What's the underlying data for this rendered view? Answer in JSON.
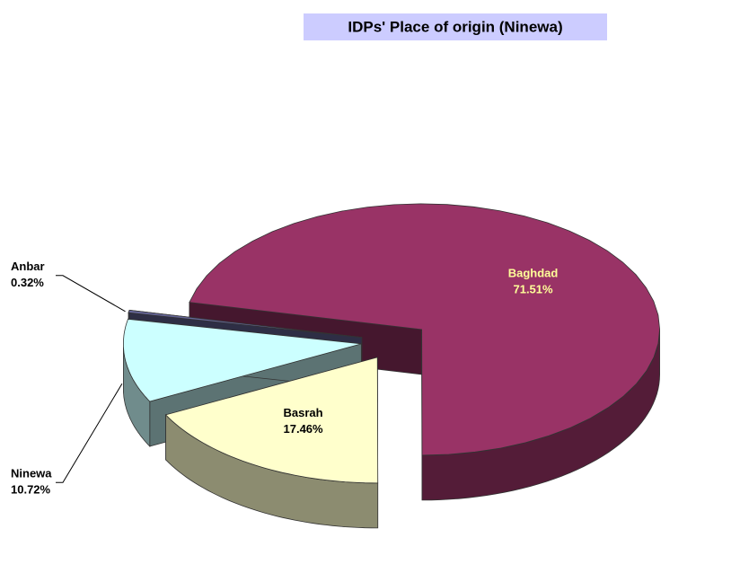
{
  "chart_data": {
    "type": "pie",
    "title": "IDPs' Place of origin (Ninewa)",
    "categories": [
      "Baghdad",
      "Basrah",
      "Ninewa",
      "Anbar"
    ],
    "values": [
      71.51,
      17.46,
      10.72,
      0.32
    ],
    "value_labels": [
      "71.51%",
      "17.46%",
      "10.72%",
      "0.32%"
    ],
    "colors": [
      "#993366",
      "#ffffcc",
      "#ccffff",
      "#666699"
    ]
  }
}
